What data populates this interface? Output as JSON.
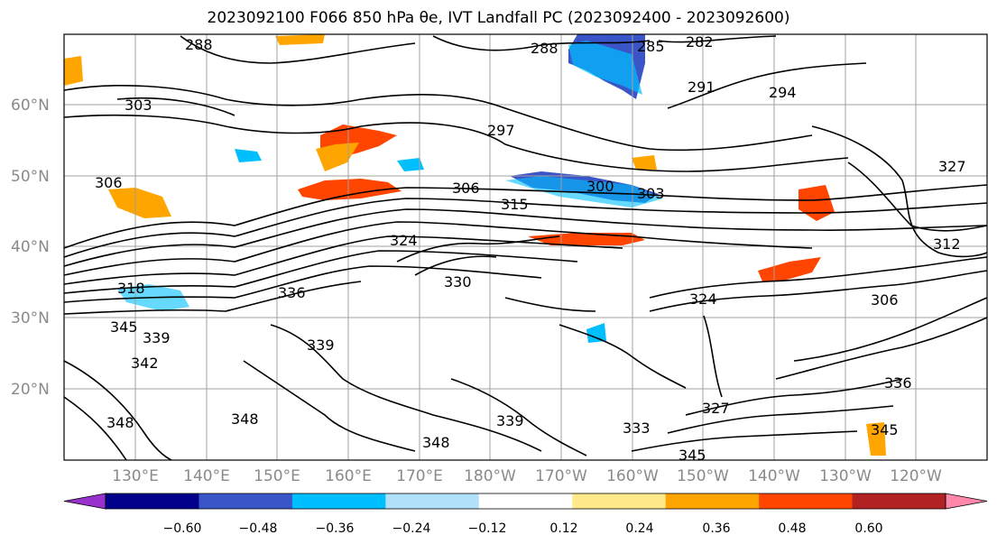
{
  "title": "2023092100 F066 850 hPa θe, IVT Landfall PC (2023092400 - 2023092600)",
  "lat_labels": [
    "60°N",
    "50°N",
    "40°N",
    "30°N",
    "20°N"
  ],
  "lon_labels": [
    "130°E",
    "140°E",
    "150°E",
    "160°E",
    "170°E",
    "180°W",
    "170°W",
    "160°W",
    "150°W",
    "140°W",
    "130°W",
    "120°W"
  ],
  "contour_labels": [
    "288",
    "285",
    "282",
    "288",
    "291",
    "294",
    "303",
    "297",
    "306",
    "306",
    "300",
    "303",
    "315",
    "327",
    "312",
    "324",
    "318",
    "330",
    "336",
    "324",
    "306",
    "345",
    "339",
    "348",
    "348",
    "339",
    "339",
    "348",
    "333",
    "336",
    "327",
    "345",
    "345",
    "342"
  ],
  "colorbar": {
    "ticks": [
      "−0.60",
      "−0.48",
      "−0.36",
      "−0.24",
      "−0.12",
      "0.12",
      "0.24",
      "0.36",
      "0.48",
      "0.60"
    ],
    "colors": [
      "#9932cc",
      "#00008b",
      "#3a55c8",
      "#00bfff",
      "#b0e0fa",
      "#ffffff",
      "#ffe98a",
      "#ffa500",
      "#ff4500",
      "#b22222",
      "#ff88aa"
    ]
  }
}
